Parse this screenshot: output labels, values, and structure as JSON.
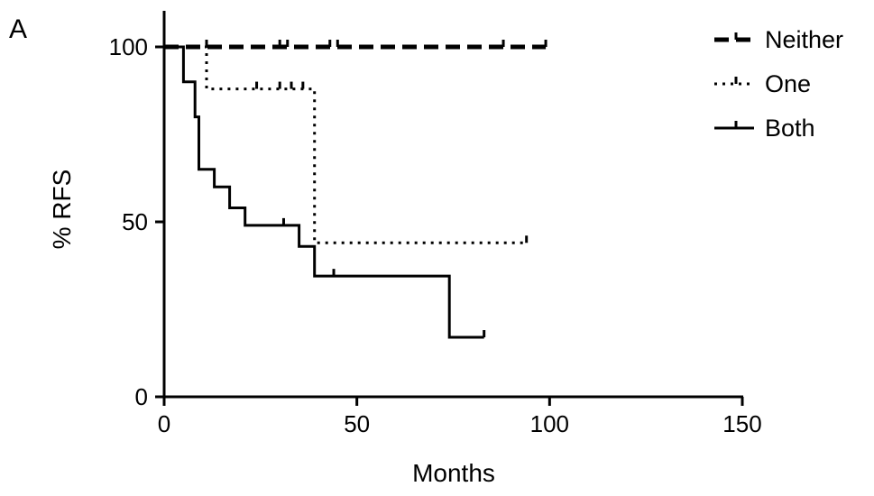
{
  "panel_label": "A",
  "chart_data": {
    "type": "line",
    "subtype": "kaplan-meier step curve",
    "xlabel": "Months",
    "ylabel": "% RFS",
    "xlim": [
      0,
      150
    ],
    "ylim": [
      0,
      100
    ],
    "x_ticks": [
      0,
      50,
      100,
      150
    ],
    "x_tick_labels": [
      "0",
      "50",
      "100",
      "150"
    ],
    "y_ticks": [
      0,
      50,
      100
    ],
    "y_tick_labels": [
      "0",
      "50",
      "100"
    ],
    "grid": false,
    "legend_position": "top-right",
    "series": [
      {
        "name": "Neither",
        "line_style": "dashed",
        "steps": [
          [
            0,
            100
          ],
          [
            99,
            100
          ]
        ],
        "censored": [
          [
            11,
            100
          ],
          [
            30,
            100
          ],
          [
            32,
            100
          ],
          [
            43,
            100
          ],
          [
            45,
            100
          ],
          [
            88,
            100
          ],
          [
            99,
            100
          ]
        ]
      },
      {
        "name": "One",
        "line_style": "dotted",
        "steps": [
          [
            0,
            100
          ],
          [
            11,
            100
          ],
          [
            11,
            88
          ],
          [
            39,
            88
          ],
          [
            39,
            44
          ],
          [
            94,
            44
          ]
        ],
        "censored": [
          [
            24,
            88
          ],
          [
            30,
            88
          ],
          [
            33,
            88
          ],
          [
            36,
            88
          ],
          [
            94,
            44
          ]
        ]
      },
      {
        "name": "Both",
        "line_style": "solid",
        "steps": [
          [
            0,
            100
          ],
          [
            5,
            100
          ],
          [
            5,
            90
          ],
          [
            8,
            90
          ],
          [
            8,
            80
          ],
          [
            9,
            80
          ],
          [
            9,
            65
          ],
          [
            13,
            65
          ],
          [
            13,
            60
          ],
          [
            17,
            60
          ],
          [
            17,
            54
          ],
          [
            21,
            54
          ],
          [
            21,
            49
          ],
          [
            35,
            49
          ],
          [
            35,
            43
          ],
          [
            39,
            43
          ],
          [
            39,
            34.5
          ],
          [
            74,
            34.5
          ],
          [
            74,
            17
          ],
          [
            83,
            17
          ]
        ],
        "censored": [
          [
            31,
            49
          ],
          [
            44,
            34.5
          ],
          [
            83,
            17
          ]
        ]
      }
    ]
  }
}
